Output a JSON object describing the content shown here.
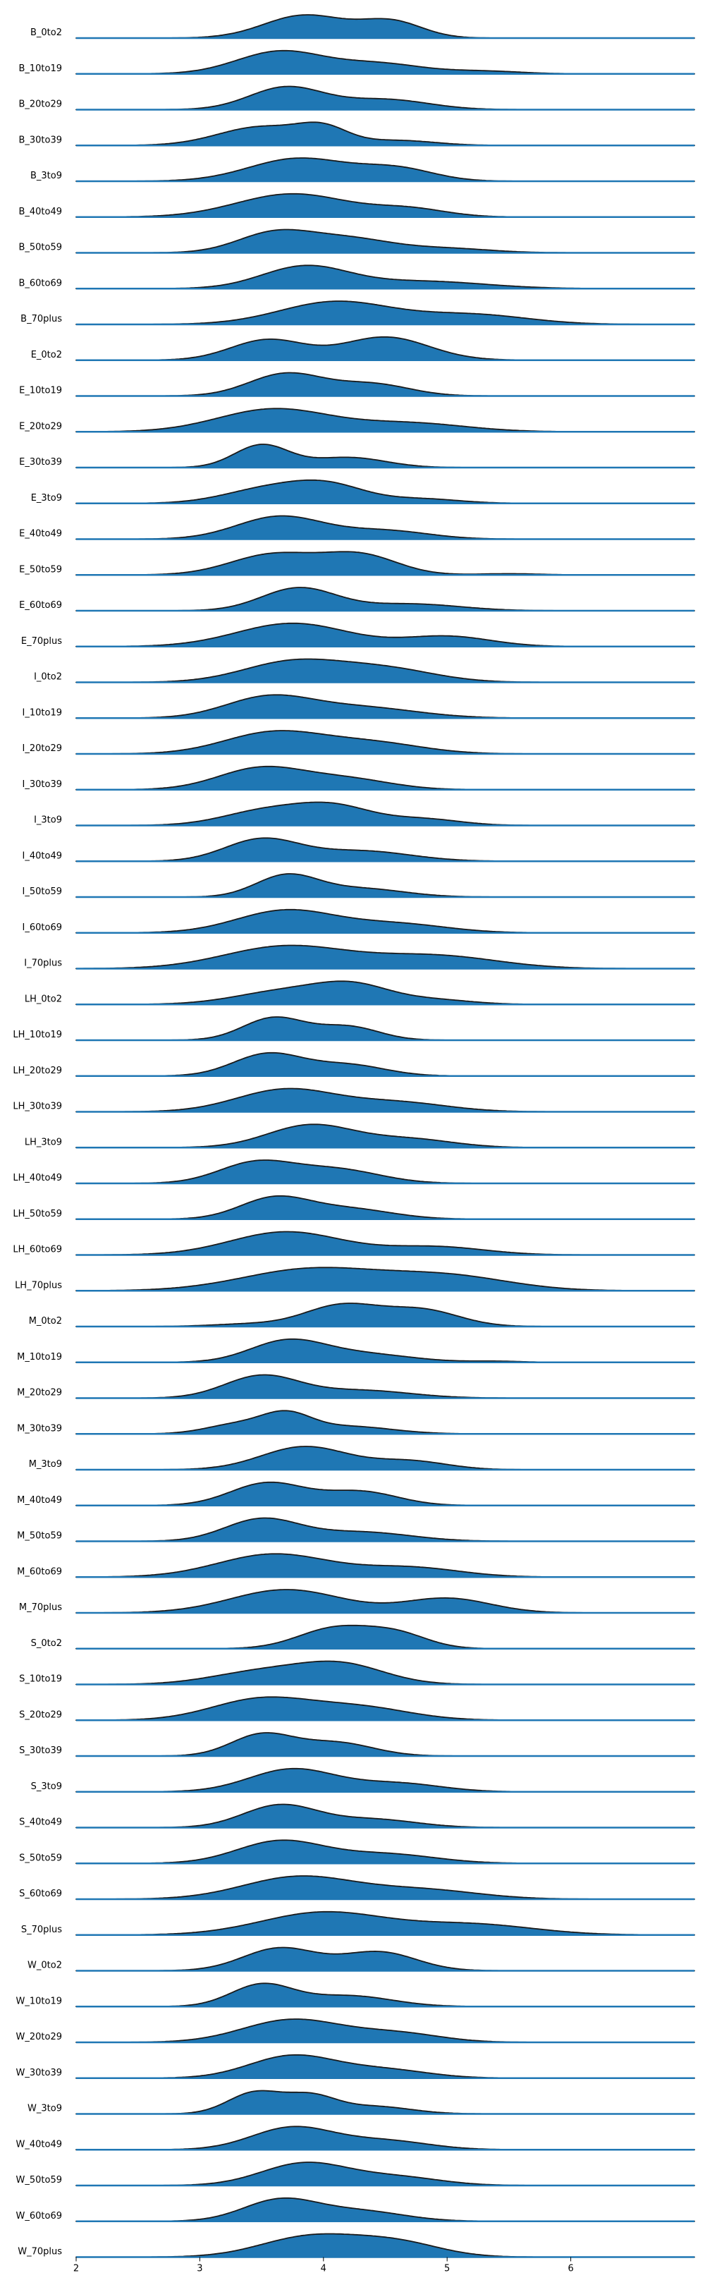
{
  "chart_data": {
    "type": "area",
    "subtype": "ridgeline",
    "title": "",
    "xlabel": "",
    "ylabel": "",
    "xlim": [
      2,
      7
    ],
    "x_ticks": [
      2,
      3,
      4,
      5,
      6
    ],
    "fill_color": "#1f77b4",
    "line_color": "#1a1a1a",
    "series": [
      {
        "name": "B_0to2",
        "peaks": [
          [
            3.85,
            0.33,
            0.98
          ],
          [
            4.55,
            0.25,
            0.7
          ]
        ]
      },
      {
        "name": "B_10to19",
        "peaks": [
          [
            3.65,
            0.35,
            1.0
          ],
          [
            4.45,
            0.35,
            0.45
          ],
          [
            5.3,
            0.3,
            0.12
          ]
        ]
      },
      {
        "name": "B_20to29",
        "peaks": [
          [
            3.7,
            0.3,
            1.0
          ],
          [
            4.5,
            0.35,
            0.45
          ]
        ]
      },
      {
        "name": "B_30to39",
        "peaks": [
          [
            3.5,
            0.35,
            0.75
          ],
          [
            4.0,
            0.2,
            0.6
          ],
          [
            4.6,
            0.3,
            0.2
          ]
        ]
      },
      {
        "name": "B_3to9",
        "peaks": [
          [
            3.8,
            0.4,
            0.95
          ],
          [
            4.6,
            0.3,
            0.5
          ]
        ]
      },
      {
        "name": "B_40to49",
        "peaks": [
          [
            3.75,
            0.45,
            0.9
          ],
          [
            4.7,
            0.3,
            0.3
          ]
        ]
      },
      {
        "name": "B_50to59",
        "peaks": [
          [
            3.6,
            0.3,
            0.9
          ],
          [
            4.2,
            0.35,
            0.65
          ],
          [
            5.0,
            0.35,
            0.2
          ]
        ]
      },
      {
        "name": "B_60to69",
        "peaks": [
          [
            3.85,
            0.35,
            0.9
          ],
          [
            4.8,
            0.5,
            0.3
          ]
        ]
      },
      {
        "name": "B_70plus",
        "peaks": [
          [
            4.1,
            0.45,
            0.7
          ],
          [
            5.2,
            0.45,
            0.3
          ]
        ]
      },
      {
        "name": "E_0to2",
        "peaks": [
          [
            3.55,
            0.3,
            0.75
          ],
          [
            4.5,
            0.35,
            0.85
          ]
        ]
      },
      {
        "name": "E_10to19",
        "peaks": [
          [
            3.7,
            0.3,
            0.95
          ],
          [
            4.4,
            0.3,
            0.5
          ]
        ]
      },
      {
        "name": "E_20to29",
        "peaks": [
          [
            3.6,
            0.45,
            0.8
          ],
          [
            4.7,
            0.45,
            0.3
          ]
        ]
      },
      {
        "name": "E_30to39",
        "peaks": [
          [
            3.5,
            0.22,
            1.0
          ],
          [
            4.2,
            0.3,
            0.45
          ]
        ]
      },
      {
        "name": "E_3to9",
        "peaks": [
          [
            3.55,
            0.35,
            0.65
          ],
          [
            4.05,
            0.3,
            0.75
          ],
          [
            4.8,
            0.3,
            0.2
          ]
        ]
      },
      {
        "name": "E_40to49",
        "peaks": [
          [
            3.65,
            0.35,
            0.95
          ],
          [
            4.5,
            0.35,
            0.35
          ]
        ]
      },
      {
        "name": "E_50to59",
        "peaks": [
          [
            3.6,
            0.35,
            0.85
          ],
          [
            4.3,
            0.3,
            0.8
          ],
          [
            5.5,
            0.25,
            0.05
          ]
        ]
      },
      {
        "name": "E_60to69",
        "peaks": [
          [
            3.8,
            0.3,
            1.0
          ],
          [
            4.7,
            0.4,
            0.3
          ]
        ]
      },
      {
        "name": "E_70plus",
        "peaks": [
          [
            3.75,
            0.45,
            0.8
          ],
          [
            5.0,
            0.35,
            0.35
          ]
        ]
      },
      {
        "name": "I_0to2",
        "peaks": [
          [
            3.75,
            0.4,
            0.85
          ],
          [
            4.5,
            0.4,
            0.55
          ]
        ]
      },
      {
        "name": "I_10to19",
        "peaks": [
          [
            3.55,
            0.35,
            0.95
          ],
          [
            4.3,
            0.45,
            0.5
          ]
        ]
      },
      {
        "name": "I_20to29",
        "peaks": [
          [
            3.6,
            0.4,
            0.9
          ],
          [
            4.4,
            0.4,
            0.45
          ]
        ]
      },
      {
        "name": "I_30to39",
        "peaks": [
          [
            3.5,
            0.35,
            0.95
          ],
          [
            4.2,
            0.35,
            0.45
          ]
        ]
      },
      {
        "name": "I_3to9",
        "peaks": [
          [
            3.55,
            0.35,
            0.7
          ],
          [
            4.1,
            0.3,
            0.8
          ],
          [
            4.8,
            0.3,
            0.3
          ]
        ]
      },
      {
        "name": "I_40to49",
        "peaks": [
          [
            3.5,
            0.3,
            0.95
          ],
          [
            4.3,
            0.4,
            0.45
          ]
        ]
      },
      {
        "name": "I_50to59",
        "peaks": [
          [
            3.7,
            0.25,
            1.0
          ],
          [
            4.3,
            0.35,
            0.4
          ]
        ]
      },
      {
        "name": "I_60to69",
        "peaks": [
          [
            3.7,
            0.4,
            0.9
          ],
          [
            4.6,
            0.4,
            0.35
          ]
        ]
      },
      {
        "name": "I_70plus",
        "peaks": [
          [
            3.7,
            0.5,
            0.7
          ],
          [
            4.9,
            0.5,
            0.4
          ]
        ]
      },
      {
        "name": "LH_0to2",
        "peaks": [
          [
            3.7,
            0.4,
            0.6
          ],
          [
            4.25,
            0.3,
            0.75
          ],
          [
            4.9,
            0.3,
            0.2
          ]
        ]
      },
      {
        "name": "LH_10to19",
        "peaks": [
          [
            3.6,
            0.25,
            1.0
          ],
          [
            4.2,
            0.25,
            0.6
          ]
        ]
      },
      {
        "name": "LH_20to29",
        "peaks": [
          [
            3.55,
            0.28,
            1.0
          ],
          [
            4.2,
            0.3,
            0.5
          ]
        ]
      },
      {
        "name": "LH_30to39",
        "peaks": [
          [
            3.7,
            0.4,
            0.85
          ],
          [
            4.6,
            0.4,
            0.35
          ]
        ]
      },
      {
        "name": "LH_3to9",
        "peaks": [
          [
            3.9,
            0.35,
            0.95
          ],
          [
            4.7,
            0.35,
            0.35
          ]
        ]
      },
      {
        "name": "LH_40to49",
        "peaks": [
          [
            3.45,
            0.3,
            0.8
          ],
          [
            4.1,
            0.35,
            0.55
          ]
        ]
      },
      {
        "name": "LH_50to59",
        "peaks": [
          [
            3.6,
            0.28,
            1.0
          ],
          [
            4.2,
            0.35,
            0.5
          ]
        ]
      },
      {
        "name": "LH_60to69",
        "peaks": [
          [
            3.7,
            0.45,
            0.85
          ],
          [
            4.9,
            0.4,
            0.3
          ]
        ]
      },
      {
        "name": "LH_70plus",
        "peaks": [
          [
            3.9,
            0.55,
            0.6
          ],
          [
            5.0,
            0.5,
            0.4
          ]
        ]
      },
      {
        "name": "M_0to2",
        "peaks": [
          [
            4.15,
            0.3,
            0.85
          ],
          [
            4.8,
            0.3,
            0.65
          ],
          [
            3.4,
            0.3,
            0.1
          ]
        ]
      },
      {
        "name": "M_10to19",
        "peaks": [
          [
            3.7,
            0.3,
            0.95
          ],
          [
            4.3,
            0.4,
            0.4
          ],
          [
            5.4,
            0.2,
            0.05
          ]
        ]
      },
      {
        "name": "M_20to29",
        "peaks": [
          [
            3.5,
            0.3,
            1.0
          ],
          [
            4.3,
            0.4,
            0.35
          ]
        ]
      },
      {
        "name": "M_30to39",
        "peaks": [
          [
            3.3,
            0.25,
            0.5
          ],
          [
            3.7,
            0.2,
            0.95
          ],
          [
            4.2,
            0.35,
            0.4
          ]
        ]
      },
      {
        "name": "M_3to9",
        "peaks": [
          [
            3.85,
            0.35,
            0.95
          ],
          [
            4.7,
            0.3,
            0.35
          ]
        ]
      },
      {
        "name": "M_40to49",
        "peaks": [
          [
            3.55,
            0.3,
            0.9
          ],
          [
            4.3,
            0.3,
            0.55
          ]
        ]
      },
      {
        "name": "M_50to59",
        "peaks": [
          [
            3.5,
            0.3,
            0.95
          ],
          [
            4.3,
            0.4,
            0.4
          ]
        ]
      },
      {
        "name": "M_60to69",
        "peaks": [
          [
            3.6,
            0.45,
            0.85
          ],
          [
            4.7,
            0.4,
            0.35
          ]
        ]
      },
      {
        "name": "M_70plus",
        "peaks": [
          [
            3.7,
            0.45,
            0.8
          ],
          [
            5.0,
            0.35,
            0.5
          ]
        ]
      },
      {
        "name": "S_0to2",
        "peaks": [
          [
            4.1,
            0.3,
            0.9
          ],
          [
            4.6,
            0.25,
            0.6
          ]
        ]
      },
      {
        "name": "S_10to19",
        "peaks": [
          [
            3.5,
            0.4,
            0.6
          ],
          [
            4.15,
            0.35,
            0.9
          ]
        ]
      },
      {
        "name": "S_20to29",
        "peaks": [
          [
            3.5,
            0.4,
            0.85
          ],
          [
            4.3,
            0.4,
            0.5
          ]
        ]
      },
      {
        "name": "S_30to39",
        "peaks": [
          [
            3.5,
            0.25,
            0.95
          ],
          [
            4.1,
            0.3,
            0.6
          ]
        ]
      },
      {
        "name": "S_3to9",
        "peaks": [
          [
            3.75,
            0.35,
            0.95
          ],
          [
            4.6,
            0.35,
            0.35
          ]
        ]
      },
      {
        "name": "S_40to49",
        "peaks": [
          [
            3.65,
            0.3,
            0.95
          ],
          [
            4.4,
            0.35,
            0.35
          ]
        ]
      },
      {
        "name": "S_50to59",
        "peaks": [
          [
            3.65,
            0.35,
            0.95
          ],
          [
            4.5,
            0.4,
            0.4
          ]
        ]
      },
      {
        "name": "S_60to69",
        "peaks": [
          [
            3.8,
            0.45,
            0.85
          ],
          [
            4.8,
            0.45,
            0.35
          ]
        ]
      },
      {
        "name": "S_70plus",
        "peaks": [
          [
            4.0,
            0.5,
            0.75
          ],
          [
            5.2,
            0.5,
            0.35
          ]
        ]
      },
      {
        "name": "W_0to2",
        "peaks": [
          [
            3.65,
            0.3,
            0.85
          ],
          [
            4.45,
            0.3,
            0.7
          ]
        ]
      },
      {
        "name": "W_10to19",
        "peaks": [
          [
            3.5,
            0.25,
            1.0
          ],
          [
            4.2,
            0.35,
            0.5
          ]
        ]
      },
      {
        "name": "W_20to29",
        "peaks": [
          [
            3.75,
            0.4,
            0.9
          ],
          [
            4.6,
            0.35,
            0.35
          ]
        ]
      },
      {
        "name": "W_30to39",
        "peaks": [
          [
            3.75,
            0.35,
            0.95
          ],
          [
            4.5,
            0.35,
            0.35
          ]
        ]
      },
      {
        "name": "W_3to9",
        "peaks": [
          [
            3.45,
            0.22,
            0.85
          ],
          [
            3.9,
            0.2,
            0.65
          ],
          [
            4.4,
            0.3,
            0.3
          ]
        ]
      },
      {
        "name": "W_40to49",
        "peaks": [
          [
            3.75,
            0.33,
            1.0
          ],
          [
            4.5,
            0.35,
            0.4
          ]
        ]
      },
      {
        "name": "W_50to59",
        "peaks": [
          [
            3.85,
            0.35,
            0.95
          ],
          [
            4.6,
            0.35,
            0.35
          ]
        ]
      },
      {
        "name": "W_60to69",
        "peaks": [
          [
            3.65,
            0.3,
            0.95
          ],
          [
            4.3,
            0.35,
            0.45
          ]
        ]
      },
      {
        "name": "W_70plus",
        "peaks": [
          [
            3.9,
            0.4,
            0.75
          ],
          [
            4.6,
            0.35,
            0.5
          ]
        ]
      }
    ]
  }
}
